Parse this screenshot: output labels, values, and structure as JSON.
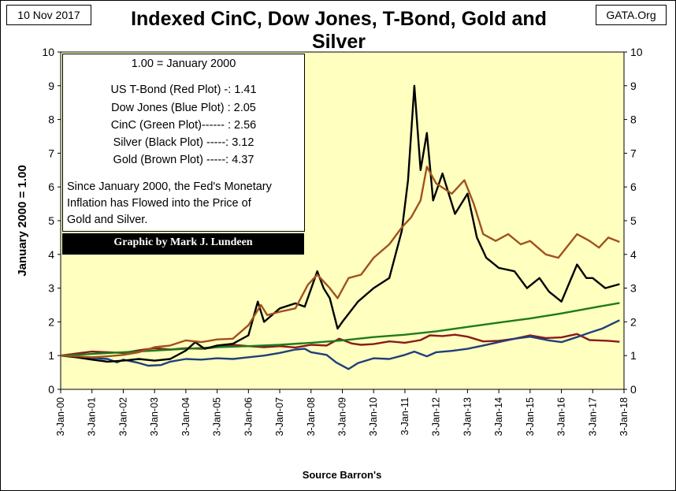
{
  "header": {
    "date": "10 Nov 2017",
    "title": "Indexed CinC, Dow Jones, T-Bond, Gold and Silver",
    "source_tag": "GATA.Org"
  },
  "legend_box": {
    "baseline": "1.00 = January 2000",
    "entries": [
      "US T-Bond (Red Plot) -: 1.41",
      "Dow Jones (Blue Plot) : 2.05",
      "CinC (Green Plot)------ : 2.56",
      "Silver (Black Plot) -----: 3.12",
      "Gold (Brown Plot) -----: 4.37"
    ],
    "note_lines": [
      "Since January 2000, the Fed's Monetary",
      "Inflation has Flowed into the Price of",
      "Gold and Silver."
    ],
    "credit": "Graphic by Mark J. Lundeen"
  },
  "colors": {
    "plot_background": "#ffffc0",
    "gold": "#a0521e",
    "silver": "#000000",
    "cinc": "#1e7a1e",
    "dow": "#1f3f7a",
    "tbond": "#8b1a1a",
    "credit_bar": "#000000",
    "credit_text": "#ffffff"
  },
  "chart_data": {
    "type": "line",
    "title": "Indexed CinC, Dow Jones, T-Bond, Gold and Silver",
    "xlabel": "Source Barron's",
    "ylabel": "January 2000 = 1.00",
    "ylim": [
      0,
      10
    ],
    "yticks": [
      0,
      1,
      2,
      3,
      4,
      5,
      6,
      7,
      8,
      9,
      10
    ],
    "xlim": [
      2000,
      2018
    ],
    "xticks": [
      2000,
      2001,
      2002,
      2003,
      2004,
      2005,
      2006,
      2007,
      2008,
      2009,
      2010,
      2011,
      2012,
      2013,
      2014,
      2015,
      2016,
      2017,
      2018
    ],
    "xtick_labels": [
      "3-Jan-00",
      "3-Jan-01",
      "3-Jan-02",
      "3-Jan-03",
      "3-Jan-04",
      "3-Jan-05",
      "3-Jan-06",
      "3-Jan-07",
      "3-Jan-08",
      "3-Jan-09",
      "3-Jan-10",
      "3-Jan-11",
      "3-Jan-12",
      "3-Jan-13",
      "3-Jan-14",
      "3-Jan-15",
      "3-Jan-16",
      "3-Jan-17",
      "3-Jan-18"
    ],
    "grid": false,
    "series": [
      {
        "name": "US T-Bond (Red Plot)",
        "color": "#8b1a1a",
        "points": [
          [
            2000.0,
            1.0
          ],
          [
            2000.5,
            1.06
          ],
          [
            2001.0,
            1.12
          ],
          [
            2001.5,
            1.1
          ],
          [
            2002.0,
            1.08
          ],
          [
            2002.5,
            1.16
          ],
          [
            2003.0,
            1.22
          ],
          [
            2003.5,
            1.18
          ],
          [
            2004.0,
            1.22
          ],
          [
            2004.5,
            1.2
          ],
          [
            2005.0,
            1.25
          ],
          [
            2005.5,
            1.32
          ],
          [
            2006.0,
            1.28
          ],
          [
            2006.5,
            1.25
          ],
          [
            2007.0,
            1.28
          ],
          [
            2007.5,
            1.24
          ],
          [
            2008.0,
            1.32
          ],
          [
            2008.5,
            1.3
          ],
          [
            2008.9,
            1.5
          ],
          [
            2009.3,
            1.36
          ],
          [
            2009.6,
            1.32
          ],
          [
            2010.0,
            1.34
          ],
          [
            2010.5,
            1.42
          ],
          [
            2011.0,
            1.38
          ],
          [
            2011.5,
            1.46
          ],
          [
            2011.8,
            1.6
          ],
          [
            2012.2,
            1.58
          ],
          [
            2012.6,
            1.62
          ],
          [
            2013.0,
            1.56
          ],
          [
            2013.5,
            1.42
          ],
          [
            2014.0,
            1.44
          ],
          [
            2014.5,
            1.5
          ],
          [
            2015.0,
            1.6
          ],
          [
            2015.5,
            1.52
          ],
          [
            2016.0,
            1.54
          ],
          [
            2016.5,
            1.64
          ],
          [
            2016.9,
            1.46
          ],
          [
            2017.5,
            1.44
          ],
          [
            2017.86,
            1.41
          ]
        ]
      },
      {
        "name": "Dow Jones (Blue Plot)",
        "color": "#1f3f7a",
        "points": [
          [
            2000.0,
            1.0
          ],
          [
            2000.5,
            0.97
          ],
          [
            2001.0,
            0.93
          ],
          [
            2001.5,
            0.9
          ],
          [
            2001.8,
            0.8
          ],
          [
            2002.0,
            0.88
          ],
          [
            2002.5,
            0.78
          ],
          [
            2002.8,
            0.7
          ],
          [
            2003.2,
            0.72
          ],
          [
            2003.5,
            0.82
          ],
          [
            2004.0,
            0.9
          ],
          [
            2004.5,
            0.88
          ],
          [
            2005.0,
            0.92
          ],
          [
            2005.5,
            0.9
          ],
          [
            2006.0,
            0.95
          ],
          [
            2006.5,
            1.0
          ],
          [
            2007.0,
            1.08
          ],
          [
            2007.5,
            1.18
          ],
          [
            2007.8,
            1.2
          ],
          [
            2008.0,
            1.1
          ],
          [
            2008.5,
            1.02
          ],
          [
            2008.8,
            0.8
          ],
          [
            2009.2,
            0.6
          ],
          [
            2009.5,
            0.78
          ],
          [
            2010.0,
            0.92
          ],
          [
            2010.5,
            0.9
          ],
          [
            2011.0,
            1.02
          ],
          [
            2011.3,
            1.12
          ],
          [
            2011.7,
            0.98
          ],
          [
            2012.0,
            1.1
          ],
          [
            2012.5,
            1.14
          ],
          [
            2013.0,
            1.2
          ],
          [
            2013.5,
            1.3
          ],
          [
            2014.0,
            1.4
          ],
          [
            2014.5,
            1.5
          ],
          [
            2015.0,
            1.56
          ],
          [
            2015.6,
            1.45
          ],
          [
            2016.0,
            1.4
          ],
          [
            2016.5,
            1.55
          ],
          [
            2016.9,
            1.68
          ],
          [
            2017.3,
            1.8
          ],
          [
            2017.86,
            2.05
          ]
        ]
      },
      {
        "name": "CinC (Green Plot)",
        "color": "#1e7a1e",
        "points": [
          [
            2000.0,
            1.0
          ],
          [
            2001.0,
            1.05
          ],
          [
            2002.0,
            1.1
          ],
          [
            2003.0,
            1.15
          ],
          [
            2004.0,
            1.2
          ],
          [
            2005.0,
            1.25
          ],
          [
            2006.0,
            1.28
          ],
          [
            2007.0,
            1.32
          ],
          [
            2008.0,
            1.38
          ],
          [
            2009.0,
            1.45
          ],
          [
            2010.0,
            1.55
          ],
          [
            2011.0,
            1.62
          ],
          [
            2012.0,
            1.72
          ],
          [
            2013.0,
            1.85
          ],
          [
            2014.0,
            1.98
          ],
          [
            2015.0,
            2.1
          ],
          [
            2016.0,
            2.25
          ],
          [
            2017.0,
            2.42
          ],
          [
            2017.86,
            2.56
          ]
        ]
      },
      {
        "name": "Silver (Black Plot)",
        "color": "#000000",
        "points": [
          [
            2000.0,
            1.0
          ],
          [
            2000.5,
            0.95
          ],
          [
            2001.0,
            0.88
          ],
          [
            2001.5,
            0.82
          ],
          [
            2002.0,
            0.85
          ],
          [
            2002.5,
            0.9
          ],
          [
            2003.0,
            0.85
          ],
          [
            2003.5,
            0.9
          ],
          [
            2004.0,
            1.15
          ],
          [
            2004.3,
            1.4
          ],
          [
            2004.6,
            1.2
          ],
          [
            2005.0,
            1.3
          ],
          [
            2005.5,
            1.35
          ],
          [
            2006.0,
            1.6
          ],
          [
            2006.3,
            2.6
          ],
          [
            2006.5,
            2.0
          ],
          [
            2007.0,
            2.4
          ],
          [
            2007.5,
            2.55
          ],
          [
            2007.8,
            2.45
          ],
          [
            2008.2,
            3.5
          ],
          [
            2008.4,
            3.0
          ],
          [
            2008.6,
            2.7
          ],
          [
            2008.85,
            1.8
          ],
          [
            2009.0,
            2.0
          ],
          [
            2009.5,
            2.6
          ],
          [
            2010.0,
            3.0
          ],
          [
            2010.5,
            3.3
          ],
          [
            2010.9,
            4.7
          ],
          [
            2011.1,
            6.2
          ],
          [
            2011.3,
            9.0
          ],
          [
            2011.5,
            6.5
          ],
          [
            2011.7,
            7.6
          ],
          [
            2011.9,
            5.6
          ],
          [
            2012.2,
            6.4
          ],
          [
            2012.6,
            5.2
          ],
          [
            2013.0,
            5.8
          ],
          [
            2013.3,
            4.5
          ],
          [
            2013.6,
            3.9
          ],
          [
            2014.0,
            3.6
          ],
          [
            2014.5,
            3.5
          ],
          [
            2014.9,
            3.0
          ],
          [
            2015.3,
            3.3
          ],
          [
            2015.6,
            2.9
          ],
          [
            2016.0,
            2.6
          ],
          [
            2016.5,
            3.7
          ],
          [
            2016.8,
            3.3
          ],
          [
            2017.0,
            3.3
          ],
          [
            2017.4,
            3.0
          ],
          [
            2017.86,
            3.12
          ]
        ]
      },
      {
        "name": "Gold (Brown Plot)",
        "color": "#a0521e",
        "points": [
          [
            2000.0,
            1.0
          ],
          [
            2000.5,
            0.98
          ],
          [
            2001.0,
            0.95
          ],
          [
            2001.5,
            0.98
          ],
          [
            2002.0,
            1.02
          ],
          [
            2002.5,
            1.1
          ],
          [
            2003.0,
            1.25
          ],
          [
            2003.5,
            1.3
          ],
          [
            2004.0,
            1.45
          ],
          [
            2004.5,
            1.4
          ],
          [
            2005.0,
            1.48
          ],
          [
            2005.5,
            1.5
          ],
          [
            2006.0,
            1.9
          ],
          [
            2006.4,
            2.5
          ],
          [
            2006.6,
            2.2
          ],
          [
            2007.0,
            2.3
          ],
          [
            2007.5,
            2.4
          ],
          [
            2007.9,
            3.1
          ],
          [
            2008.2,
            3.4
          ],
          [
            2008.6,
            3.0
          ],
          [
            2008.85,
            2.7
          ],
          [
            2009.2,
            3.3
          ],
          [
            2009.6,
            3.4
          ],
          [
            2010.0,
            3.9
          ],
          [
            2010.5,
            4.3
          ],
          [
            2010.9,
            4.8
          ],
          [
            2011.2,
            5.1
          ],
          [
            2011.5,
            5.6
          ],
          [
            2011.7,
            6.6
          ],
          [
            2012.0,
            6.1
          ],
          [
            2012.5,
            5.8
          ],
          [
            2012.9,
            6.2
          ],
          [
            2013.2,
            5.5
          ],
          [
            2013.5,
            4.6
          ],
          [
            2013.9,
            4.4
          ],
          [
            2014.3,
            4.6
          ],
          [
            2014.7,
            4.3
          ],
          [
            2015.0,
            4.4
          ],
          [
            2015.5,
            4.0
          ],
          [
            2015.9,
            3.9
          ],
          [
            2016.5,
            4.6
          ],
          [
            2016.9,
            4.4
          ],
          [
            2017.2,
            4.2
          ],
          [
            2017.5,
            4.5
          ],
          [
            2017.86,
            4.37
          ]
        ]
      }
    ]
  }
}
